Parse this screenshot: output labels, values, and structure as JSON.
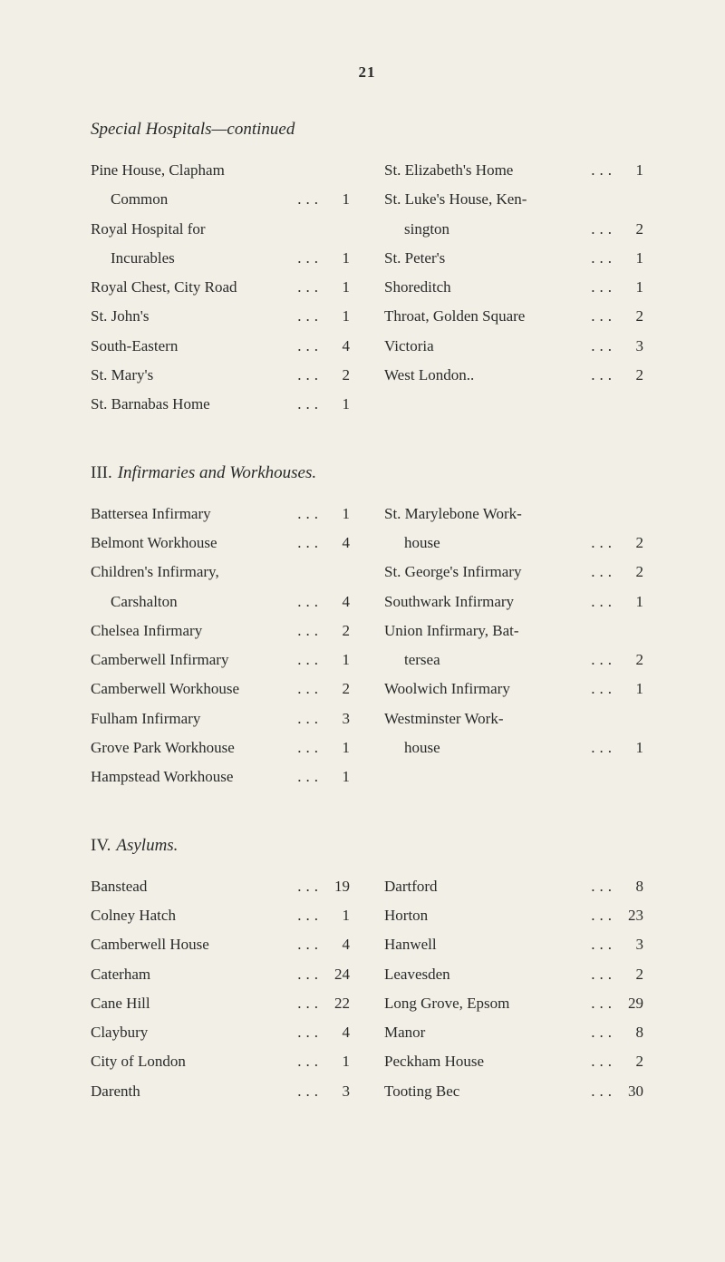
{
  "pageNumber": "21",
  "colors": {
    "background": "#f2f0e6",
    "text": "#2a2a2a"
  },
  "typography": {
    "fontFamily": "Georgia, Times New Roman, serif",
    "bodyFontSize": 17,
    "headingFontSize": 19,
    "lineHeight": 1.9
  },
  "sections": [
    {
      "heading": "Special Hospitals—continued",
      "roman": "",
      "leftCol": [
        {
          "label": "Pine House, Clapham",
          "value": ""
        },
        {
          "label": "Common",
          "value": "1",
          "indent": true
        },
        {
          "label": "Royal Hospital for",
          "value": ""
        },
        {
          "label": "Incurables",
          "value": "1",
          "indent": true
        },
        {
          "label": "Royal Chest, City Road",
          "value": "1"
        },
        {
          "label": "St. John's",
          "value": "1"
        },
        {
          "label": "South-Eastern",
          "value": "4"
        },
        {
          "label": "St. Mary's",
          "value": "2"
        },
        {
          "label": "St. Barnabas Home",
          "value": "1"
        }
      ],
      "rightCol": [
        {
          "label": "St. Elizabeth's Home",
          "value": "1"
        },
        {
          "label": "St. Luke's House, Ken-",
          "value": ""
        },
        {
          "label": "sington",
          "value": "2",
          "indent": true
        },
        {
          "label": "St. Peter's",
          "value": "1"
        },
        {
          "label": "Shoreditch",
          "value": "1"
        },
        {
          "label": "Throat, Golden Square",
          "value": "2"
        },
        {
          "label": "Victoria",
          "value": "3"
        },
        {
          "label": "West London..",
          "value": "2"
        }
      ]
    },
    {
      "heading": "Infirmaries and Workhouses.",
      "roman": "III.",
      "leftCol": [
        {
          "label": "Battersea Infirmary",
          "value": "1"
        },
        {
          "label": "Belmont Workhouse",
          "value": "4"
        },
        {
          "label": "Children's Infirmary,",
          "value": ""
        },
        {
          "label": "Carshalton",
          "value": "4",
          "indent": true
        },
        {
          "label": "Chelsea Infirmary",
          "value": "2"
        },
        {
          "label": "Camberwell Infirmary",
          "value": "1"
        },
        {
          "label": "Camberwell Workhouse",
          "value": "2"
        },
        {
          "label": "Fulham Infirmary",
          "value": "3"
        },
        {
          "label": "Grove Park Workhouse",
          "value": "1"
        },
        {
          "label": "Hampstead Workhouse",
          "value": "1"
        }
      ],
      "rightCol": [
        {
          "label": "St. Marylebone Work-",
          "value": ""
        },
        {
          "label": "house",
          "value": "2",
          "indent": true
        },
        {
          "label": "St. George's Infirmary",
          "value": "2"
        },
        {
          "label": "Southwark Infirmary",
          "value": "1"
        },
        {
          "label": "Union Infirmary, Bat-",
          "value": ""
        },
        {
          "label": "tersea",
          "value": "2",
          "indent": true
        },
        {
          "label": "Woolwich Infirmary",
          "value": "1"
        },
        {
          "label": "Westminster Work-",
          "value": ""
        },
        {
          "label": "house",
          "value": "1",
          "indent": true
        }
      ]
    },
    {
      "heading": "Asylums.",
      "roman": "IV.",
      "leftCol": [
        {
          "label": "Banstead",
          "value": "19"
        },
        {
          "label": "Colney Hatch",
          "value": "1"
        },
        {
          "label": "Camberwell House",
          "value": "4"
        },
        {
          "label": "Caterham",
          "value": "24"
        },
        {
          "label": "Cane Hill",
          "value": "22"
        },
        {
          "label": "Claybury",
          "value": "4"
        },
        {
          "label": "City of London",
          "value": "1"
        },
        {
          "label": "Darenth",
          "value": "3"
        }
      ],
      "rightCol": [
        {
          "label": "Dartford",
          "value": "8"
        },
        {
          "label": "Horton",
          "value": "23"
        },
        {
          "label": "Hanwell",
          "value": "3"
        },
        {
          "label": "Leavesden",
          "value": "2"
        },
        {
          "label": "Long Grove, Epsom",
          "value": "29"
        },
        {
          "label": "Manor",
          "value": "8"
        },
        {
          "label": "Peckham House",
          "value": "2"
        },
        {
          "label": "Tooting Bec",
          "value": "30"
        }
      ]
    }
  ]
}
